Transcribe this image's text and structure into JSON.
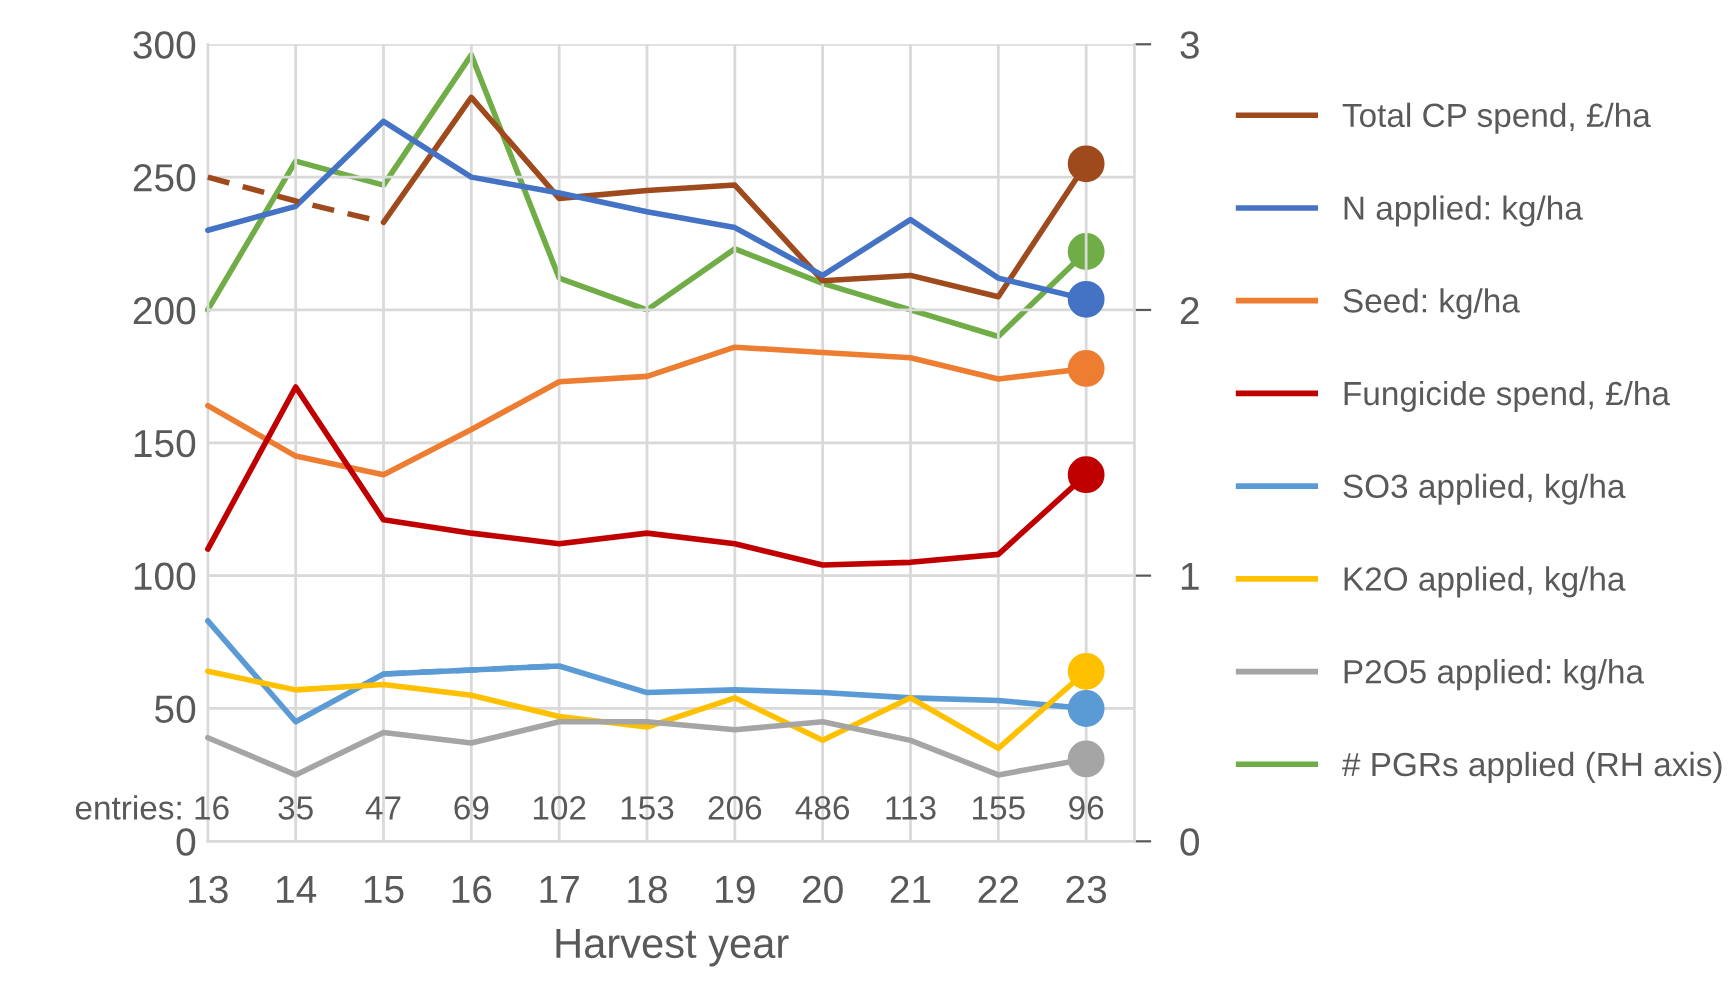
{
  "chart_data": {
    "type": "line",
    "xlabel": "Harvest year",
    "xlim": [
      13,
      23.55
    ],
    "xticks": [
      13,
      14,
      15,
      16,
      17,
      18,
      19,
      20,
      21,
      22,
      23
    ],
    "ylim": [
      0,
      300
    ],
    "yticks": [
      0,
      50,
      100,
      150,
      200,
      250,
      300
    ],
    "y2lim": [
      0,
      3
    ],
    "y2ticks": [
      0,
      1,
      2,
      3
    ],
    "grid": true,
    "legend": "right",
    "x": [
      13,
      14,
      15,
      16,
      17,
      18,
      19,
      20,
      21,
      22,
      23
    ],
    "series": [
      {
        "name": "Total CP spend, £/ha",
        "color": "#9e4a1c",
        "values": [
          null,
          null,
          233,
          280,
          242,
          245,
          247,
          211,
          213,
          205,
          255
        ]
      },
      {
        "name": "N applied: kg/ha",
        "color": "#4472c4",
        "values": [
          230,
          239,
          271,
          250,
          244,
          237,
          231,
          213,
          234,
          212,
          204
        ]
      },
      {
        "name": "Seed: kg/ha",
        "color": "#ed7d31",
        "values": [
          164,
          145,
          138,
          155,
          173,
          175,
          186,
          184,
          182,
          174,
          178
        ]
      },
      {
        "name": "Fungicide spend, £/ha",
        "color": "#c00000",
        "values": [
          110,
          171,
          121,
          116,
          112,
          116,
          112,
          104,
          105,
          108,
          138
        ]
      },
      {
        "name": "SO3 applied, kg/ha",
        "color": "#5b9bd5",
        "x": [
          13,
          14,
          15,
          17,
          18,
          19,
          20,
          21,
          22,
          23
        ],
        "values": [
          83,
          45,
          63,
          66,
          56,
          57,
          56,
          54,
          53,
          50
        ]
      },
      {
        "name": "K2O applied, kg/ha",
        "color": "#ffc000",
        "values": [
          64,
          57,
          59,
          55,
          47,
          43,
          54,
          38,
          54,
          35,
          64
        ]
      },
      {
        "name": "P2O5 applied: kg/ha",
        "color": "#a5a5a5",
        "values": [
          39,
          25,
          41,
          37,
          45,
          45,
          42,
          45,
          38,
          25,
          31
        ]
      },
      {
        "name": "# PGRs applied (RH axis)",
        "color": "#70ad47",
        "axis": "y2",
        "values": [
          2.0,
          2.56,
          2.47,
          2.96,
          2.12,
          2.0,
          2.23,
          2.1,
          2.0,
          1.9,
          2.22
        ]
      },
      {
        "color": "#9e4a1c",
        "line_style": "dashed",
        "x": [
          13,
          14,
          15
        ],
        "values": [
          250,
          241,
          233
        ]
      },
      {
        "color": "#5b9bd5",
        "line_style": "dashed",
        "x": [
          15,
          17
        ],
        "values": [
          63,
          66
        ]
      },
      {
        "type": "scatter",
        "marker": "circle",
        "color": "#9e4a1c",
        "x": [
          23
        ],
        "values": [
          255
        ]
      },
      {
        "type": "scatter",
        "marker": "circle",
        "color": "#4472c4",
        "x": [
          23
        ],
        "values": [
          204
        ]
      },
      {
        "type": "scatter",
        "marker": "circle",
        "color": "#ed7d31",
        "x": [
          23
        ],
        "values": [
          178
        ]
      },
      {
        "type": "scatter",
        "marker": "circle",
        "color": "#c00000",
        "x": [
          23
        ],
        "values": [
          138
        ]
      },
      {
        "type": "scatter",
        "marker": "circle",
        "color": "#5b9bd5",
        "x": [
          23
        ],
        "values": [
          50
        ]
      },
      {
        "type": "scatter",
        "marker": "circle",
        "color": "#ffc000",
        "x": [
          23
        ],
        "values": [
          64
        ]
      },
      {
        "type": "scatter",
        "marker": "circle",
        "color": "#a5a5a5",
        "x": [
          23
        ],
        "values": [
          31
        ]
      },
      {
        "type": "scatter",
        "marker": "circle",
        "color": "#70ad47",
        "axis": "y2",
        "x": [
          23
        ],
        "values": [
          2.22
        ]
      }
    ],
    "annotations": [
      "entries: 16",
      "35",
      "47",
      "69",
      "102",
      "153",
      "206",
      "486",
      "113",
      "155",
      "96"
    ]
  }
}
